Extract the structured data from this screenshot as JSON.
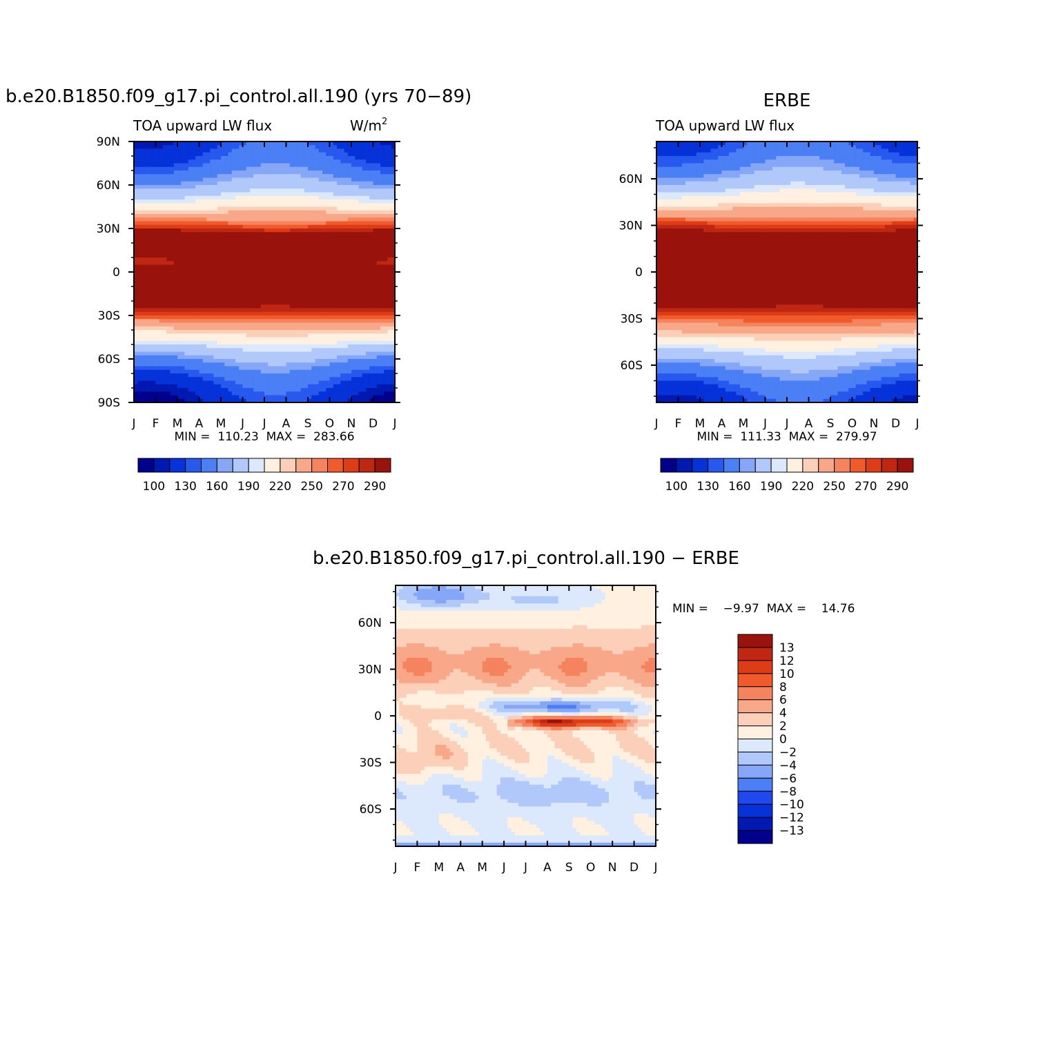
{
  "colors": {
    "abs_levels": [
      "#00008c",
      "#0019b0",
      "#0533d9",
      "#2759ee",
      "#4a7ff5",
      "#86a7f7",
      "#b0c8fa",
      "#dce9fc",
      "#fff0df",
      "#fcd0b8",
      "#f8a888",
      "#f4835e",
      "#f15a2b",
      "#de3c16",
      "#bf2712",
      "#9a120c"
    ],
    "diff_levels": [
      "#00008c",
      "#0019b0",
      "#0533d9",
      "#1f48f0",
      "#4a7ff5",
      "#86a7f7",
      "#b0c8fa",
      "#dce9fc",
      "#fff0df",
      "#fcd0b8",
      "#f8a888",
      "#f4835e",
      "#f15a2b",
      "#de3c16",
      "#bf2712",
      "#9a120c"
    ]
  },
  "chart_data": [
    {
      "type": "heatmap",
      "title": "b.e20.B1850.f09_g17.pi_control.all.190 (yrs 70−89)",
      "left_label": "TOA upward LW flux",
      "units_text": "W/m",
      "units_sup": "2",
      "x_tick_labels": [
        "J",
        "F",
        "M",
        "A",
        "M",
        "J",
        "J",
        "A",
        "S",
        "O",
        "N",
        "D",
        "J"
      ],
      "y_tick_labels": [
        "90N",
        "60N",
        "30N",
        "0",
        "30S",
        "60S",
        "90S"
      ],
      "ylim": [
        -90,
        90
      ],
      "stats_text": "MIN =  110.23  MAX =  283.66",
      "colorbar_labels": [
        "100",
        "130",
        "160",
        "190",
        "220",
        "250",
        "270",
        "290"
      ],
      "levels": [
        100,
        110,
        130,
        140,
        160,
        170,
        190,
        200,
        220,
        230,
        250,
        260,
        270,
        280,
        290
      ],
      "min": 110.23,
      "max": 283.66
    },
    {
      "type": "heatmap",
      "title": "ERBE",
      "left_label": "TOA upward LW flux",
      "x_tick_labels": [
        "J",
        "F",
        "M",
        "A",
        "M",
        "J",
        "J",
        "A",
        "S",
        "O",
        "N",
        "D",
        "J"
      ],
      "y_tick_labels": [
        "60N",
        "30N",
        "0",
        "30S",
        "60S"
      ],
      "ylim": [
        -84,
        84
      ],
      "stats_text": "MIN =  111.33  MAX =  279.97",
      "colorbar_labels": [
        "100",
        "130",
        "160",
        "190",
        "220",
        "250",
        "270",
        "290"
      ],
      "levels": [
        100,
        110,
        130,
        140,
        160,
        170,
        190,
        200,
        220,
        230,
        250,
        260,
        270,
        280,
        290
      ],
      "min": 111.33,
      "max": 279.97
    },
    {
      "type": "heatmap",
      "title": "b.e20.B1850.f09_g17.pi_control.all.190 − ERBE",
      "x_tick_labels": [
        "J",
        "F",
        "M",
        "A",
        "M",
        "J",
        "J",
        "A",
        "S",
        "O",
        "N",
        "D",
        "J"
      ],
      "y_tick_labels": [
        "60N",
        "30N",
        "0",
        "30S",
        "60S"
      ],
      "ylim": [
        -84,
        84
      ],
      "stats_text": "MIN =    −9.97  MAX =    14.76",
      "colorbar_labels": [
        "13",
        "12",
        "10",
        "8",
        "6",
        "4",
        "2",
        "0",
        "−2",
        "−4",
        "−6",
        "−8",
        "−10",
        "−12",
        "−13"
      ],
      "levels": [
        -13,
        -12,
        -10,
        -8,
        -6,
        -4,
        -2,
        0,
        2,
        4,
        6,
        8,
        10,
        12,
        13
      ],
      "min": -9.97,
      "max": 14.76
    }
  ]
}
